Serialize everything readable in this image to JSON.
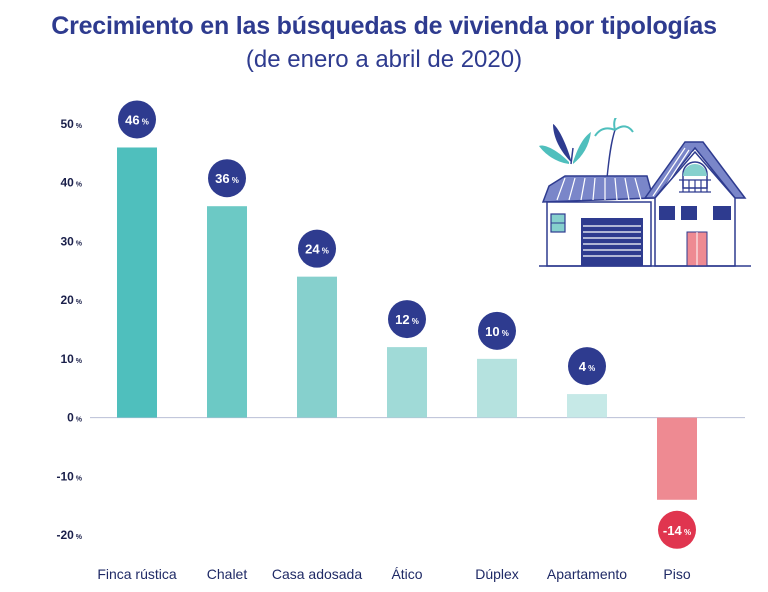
{
  "title": "Crecimiento en las búsquedas de vivienda por tipologías",
  "subtitle": "(de enero a abril de 2020)",
  "chart_data": {
    "type": "bar",
    "title": "Crecimiento en las búsquedas de vivienda por tipologías",
    "subtitle": "(de enero a abril de 2020)",
    "xlabel": "",
    "ylabel": "",
    "unit": "%",
    "ylim": [
      -20,
      50
    ],
    "yticks": [
      50,
      40,
      30,
      20,
      10,
      0,
      -10,
      -20
    ],
    "grid": false,
    "categories": [
      "Finca rústica",
      "Chalet",
      "Casa adosada",
      "Ático",
      "Dúplex",
      "Apartamento",
      "Piso"
    ],
    "values": [
      46,
      36,
      24,
      12,
      10,
      4,
      -14
    ],
    "bar_colors": [
      "#4fbfbd",
      "#6cc9c5",
      "#86d0cd",
      "#a0dad7",
      "#b5e2df",
      "#c6e9e7",
      "#ee8a92"
    ],
    "badge_colors": {
      "positive": "#2e3b8f",
      "negative": "#e0354f"
    }
  }
}
